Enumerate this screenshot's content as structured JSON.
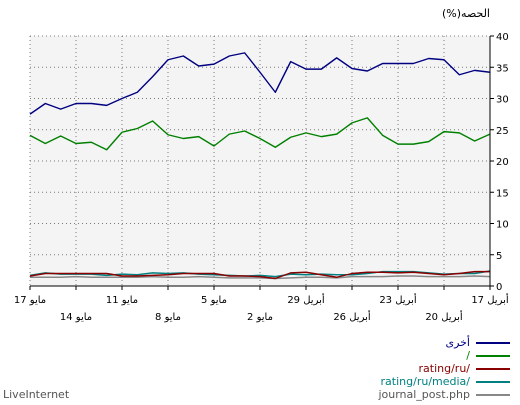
{
  "chart_data": {
    "type": "line",
    "ylabel": "(%)الحصه",
    "ylim": [
      0,
      40
    ],
    "yticks": [
      0,
      5,
      10,
      15,
      20,
      25,
      30,
      35,
      40
    ],
    "y_axis_side": "right",
    "grid": true,
    "legend_position": "bottom-right",
    "x_axis_order": "right-to-left",
    "xticks_row1": [
      {
        "day": 17,
        "label": "أبريل 17"
      },
      {
        "day": 23,
        "label": "أبريل 23"
      },
      {
        "day": 29,
        "label": "أبريل 29"
      },
      {
        "day": 35,
        "label": "مايو 5"
      },
      {
        "day": 41,
        "label": "مايو 11"
      },
      {
        "day": 47,
        "label": "مايو 17"
      }
    ],
    "xticks_row2": [
      {
        "day": 20,
        "label": "أبريل 20"
      },
      {
        "day": 26,
        "label": "أبريل 26"
      },
      {
        "day": 32,
        "label": "مايو 2"
      },
      {
        "day": 38,
        "label": "مايو 8"
      },
      {
        "day": 44,
        "label": "مايو 14"
      }
    ],
    "x": [
      17,
      18,
      19,
      20,
      21,
      22,
      23,
      24,
      25,
      26,
      27,
      28,
      29,
      30,
      31,
      32,
      33,
      34,
      35,
      36,
      37,
      38,
      39,
      40,
      41,
      42,
      43,
      44,
      45,
      46,
      47
    ],
    "series": [
      {
        "name": "أخرى",
        "color": "#000080",
        "values": [
          34.2,
          34.5,
          33.8,
          36.2,
          36.4,
          35.6,
          35.6,
          35.6,
          34.4,
          34.8,
          36.5,
          34.7,
          34.7,
          35.9,
          31.0,
          34.2,
          37.3,
          36.8,
          35.5,
          35.2,
          36.8,
          36.2,
          33.5,
          31.0,
          30.0,
          28.9,
          29.2,
          29.2,
          28.3,
          29.2,
          27.5
        ]
      },
      {
        "name": "/",
        "color": "#008000",
        "values": [
          24.3,
          23.2,
          24.5,
          24.7,
          23.1,
          22.7,
          22.7,
          24.1,
          26.9,
          26.1,
          24.3,
          23.9,
          24.5,
          23.8,
          22.2,
          23.6,
          24.8,
          24.3,
          22.4,
          23.9,
          23.6,
          24.2,
          26.4,
          25.2,
          24.6,
          21.8,
          23.0,
          22.8,
          24.0,
          22.8,
          24.1
        ]
      },
      {
        "name": "rating/ru/",
        "color": "#880000",
        "values": [
          2.3,
          2.3,
          2.0,
          1.8,
          2.0,
          2.2,
          2.1,
          2.2,
          2.2,
          2.0,
          1.4,
          1.8,
          2.2,
          2.1,
          1.2,
          1.5,
          1.6,
          1.6,
          2.0,
          2.0,
          2.0,
          1.8,
          1.7,
          1.6,
          1.6,
          2.0,
          2.0,
          2.0,
          2.0,
          2.0,
          1.6
        ]
      },
      {
        "name": "rating/ru/media/",
        "color": "#008080",
        "values": [
          2.4,
          2.0,
          2.0,
          1.9,
          2.1,
          2.3,
          2.3,
          2.3,
          2.0,
          1.8,
          1.8,
          1.9,
          1.8,
          1.9,
          1.5,
          1.7,
          1.6,
          1.7,
          1.8,
          1.9,
          2.1,
          2.0,
          2.1,
          1.8,
          1.9,
          1.7,
          1.9,
          1.9,
          1.9,
          2.1,
          1.7
        ]
      },
      {
        "name": "journal_post.php",
        "color": "#888888",
        "values": [
          1.5,
          1.6,
          1.5,
          1.5,
          1.5,
          1.6,
          1.6,
          1.5,
          1.5,
          1.5,
          1.3,
          1.4,
          1.4,
          1.3,
          1.2,
          1.3,
          1.3,
          1.3,
          1.4,
          1.5,
          1.4,
          1.4,
          1.5,
          1.4,
          1.4,
          1.4,
          1.4,
          1.5,
          1.4,
          1.4,
          1.4
        ]
      }
    ]
  },
  "footer": {
    "brand": "LiveInternet"
  }
}
